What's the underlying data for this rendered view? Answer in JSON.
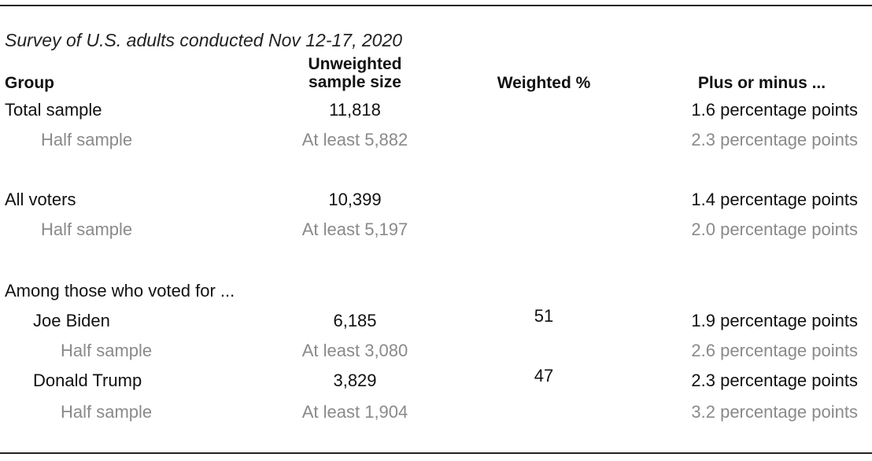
{
  "caption": "Survey of U.S. adults conducted Nov 12-17, 2020",
  "headers": {
    "group": "Group",
    "unweighted_line1": "Unweighted",
    "unweighted_line2": "sample size",
    "weighted": "Weighted %",
    "moe": "Plus or minus ..."
  },
  "rows": [
    {
      "group": "Total sample",
      "n": "11,818",
      "weighted": "",
      "moe": "1.6 percentage points"
    },
    {
      "group": "Half sample",
      "n": "At least 5,882",
      "weighted": "",
      "moe": "2.3 percentage points"
    },
    {
      "group": "All voters",
      "n": "10,399",
      "weighted": "",
      "moe": "1.4 percentage points"
    },
    {
      "group": "Half sample",
      "n": "At least 5,197",
      "weighted": "",
      "moe": "2.0 percentage points"
    },
    {
      "group": "Among those who voted for ...",
      "n": "",
      "weighted": "",
      "moe": ""
    },
    {
      "group": "Joe Biden",
      "n": "6,185",
      "weighted": "51",
      "moe": "1.9 percentage points"
    },
    {
      "group": "Half sample",
      "n": "At least 3,080",
      "weighted": "",
      "moe": "2.6 percentage points"
    },
    {
      "group": "Donald Trump",
      "n": "3,829",
      "weighted": "47",
      "moe": "2.3 percentage points"
    },
    {
      "group": "Half sample",
      "n": "At least 1,904",
      "weighted": "",
      "moe": "3.2 percentage points"
    }
  ]
}
